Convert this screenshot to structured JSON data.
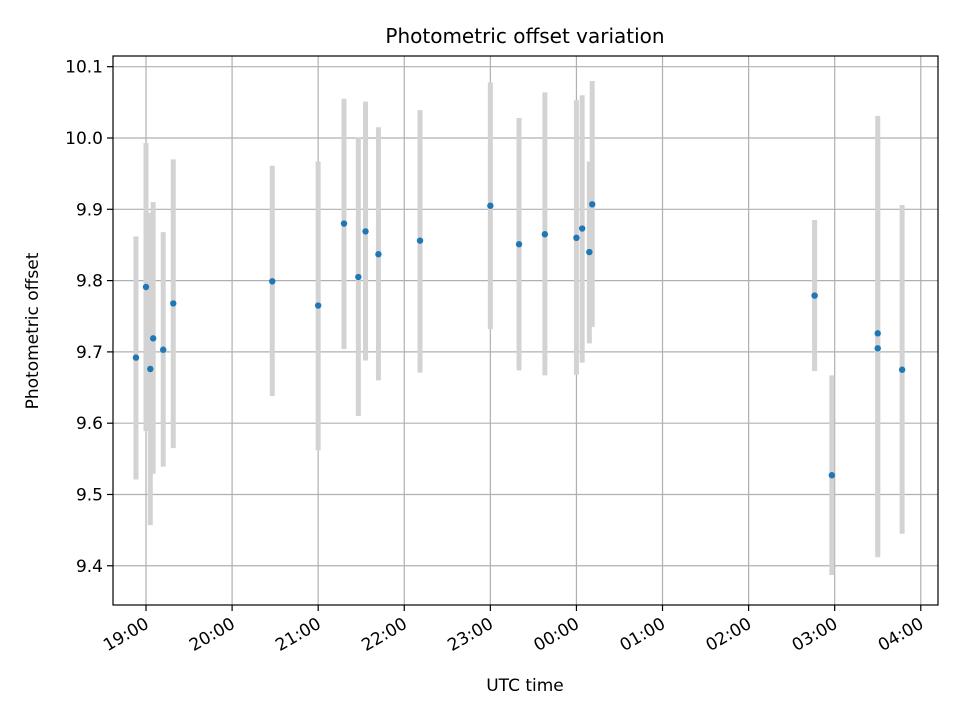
{
  "chart_data": {
    "type": "scatter",
    "title": "Photometric offset variation",
    "xlabel": "UTC time",
    "ylabel": "Photometric offset",
    "grid": true,
    "x_axis_kind": "time",
    "xlim": [
      "18:37",
      "04:12"
    ],
    "ylim": [
      9.345,
      10.115
    ],
    "x_ticks": [
      "19:00",
      "20:00",
      "21:00",
      "22:00",
      "23:00",
      "00:00",
      "01:00",
      "02:00",
      "03:00",
      "04:00"
    ],
    "y_ticks": [
      9.4,
      9.5,
      9.6,
      9.7,
      9.8,
      9.9,
      10.0,
      10.1
    ],
    "y_tick_labels": [
      "9.4",
      "9.5",
      "9.6",
      "9.7",
      "9.8",
      "9.9",
      "10.0",
      "10.1"
    ],
    "colors": {
      "points": "#1f77b4",
      "errorbars": "#d3d3d3",
      "grid": "#b0b0b0"
    },
    "series": [
      {
        "points": [
          {
            "time": "18:53",
            "y": 9.692,
            "ylow": 9.521,
            "yhigh": 9.862
          },
          {
            "time": "19:00",
            "y": 9.791,
            "ylow": 9.589,
            "yhigh": 9.993
          },
          {
            "time": "19:03",
            "y": 9.676,
            "ylow": 9.457,
            "yhigh": 9.895
          },
          {
            "time": "19:05",
            "y": 9.719,
            "ylow": 9.529,
            "yhigh": 9.91
          },
          {
            "time": "19:12",
            "y": 9.703,
            "ylow": 9.539,
            "yhigh": 9.868
          },
          {
            "time": "19:19",
            "y": 9.768,
            "ylow": 9.565,
            "yhigh": 9.97
          },
          {
            "time": "20:28",
            "y": 9.799,
            "ylow": 9.638,
            "yhigh": 9.961
          },
          {
            "time": "21:00",
            "y": 9.765,
            "ylow": 9.562,
            "yhigh": 9.967
          },
          {
            "time": "21:18",
            "y": 9.88,
            "ylow": 9.704,
            "yhigh": 10.055
          },
          {
            "time": "21:28",
            "y": 9.805,
            "ylow": 9.61,
            "yhigh": 10.001
          },
          {
            "time": "21:33",
            "y": 9.869,
            "ylow": 9.688,
            "yhigh": 10.051
          },
          {
            "time": "21:42",
            "y": 9.837,
            "ylow": 9.66,
            "yhigh": 10.015
          },
          {
            "time": "22:11",
            "y": 9.856,
            "ylow": 9.671,
            "yhigh": 10.039
          },
          {
            "time": "23:00",
            "y": 9.905,
            "ylow": 9.732,
            "yhigh": 10.078
          },
          {
            "time": "23:20",
            "y": 9.851,
            "ylow": 9.674,
            "yhigh": 10.028
          },
          {
            "time": "23:38",
            "y": 9.865,
            "ylow": 9.667,
            "yhigh": 10.064
          },
          {
            "time": "00:00",
            "y": 9.86,
            "ylow": 9.668,
            "yhigh": 10.053
          },
          {
            "time": "00:04",
            "y": 9.873,
            "ylow": 9.685,
            "yhigh": 10.06
          },
          {
            "time": "00:09",
            "y": 9.84,
            "ylow": 9.712,
            "yhigh": 9.967
          },
          {
            "time": "00:11",
            "y": 9.907,
            "ylow": 9.735,
            "yhigh": 10.08
          },
          {
            "time": "02:46",
            "y": 9.779,
            "ylow": 9.673,
            "yhigh": 9.885
          },
          {
            "time": "02:58",
            "y": 9.527,
            "ylow": 9.387,
            "yhigh": 9.667
          },
          {
            "time": "03:30",
            "y": 9.705,
            "ylow": 9.412,
            "yhigh": 9.998
          },
          {
            "time": "03:30",
            "y": 9.726,
            "ylow": 9.421,
            "yhigh": 10.031
          },
          {
            "time": "03:47",
            "y": 9.675,
            "ylow": 9.445,
            "yhigh": 9.906
          }
        ]
      }
    ]
  }
}
